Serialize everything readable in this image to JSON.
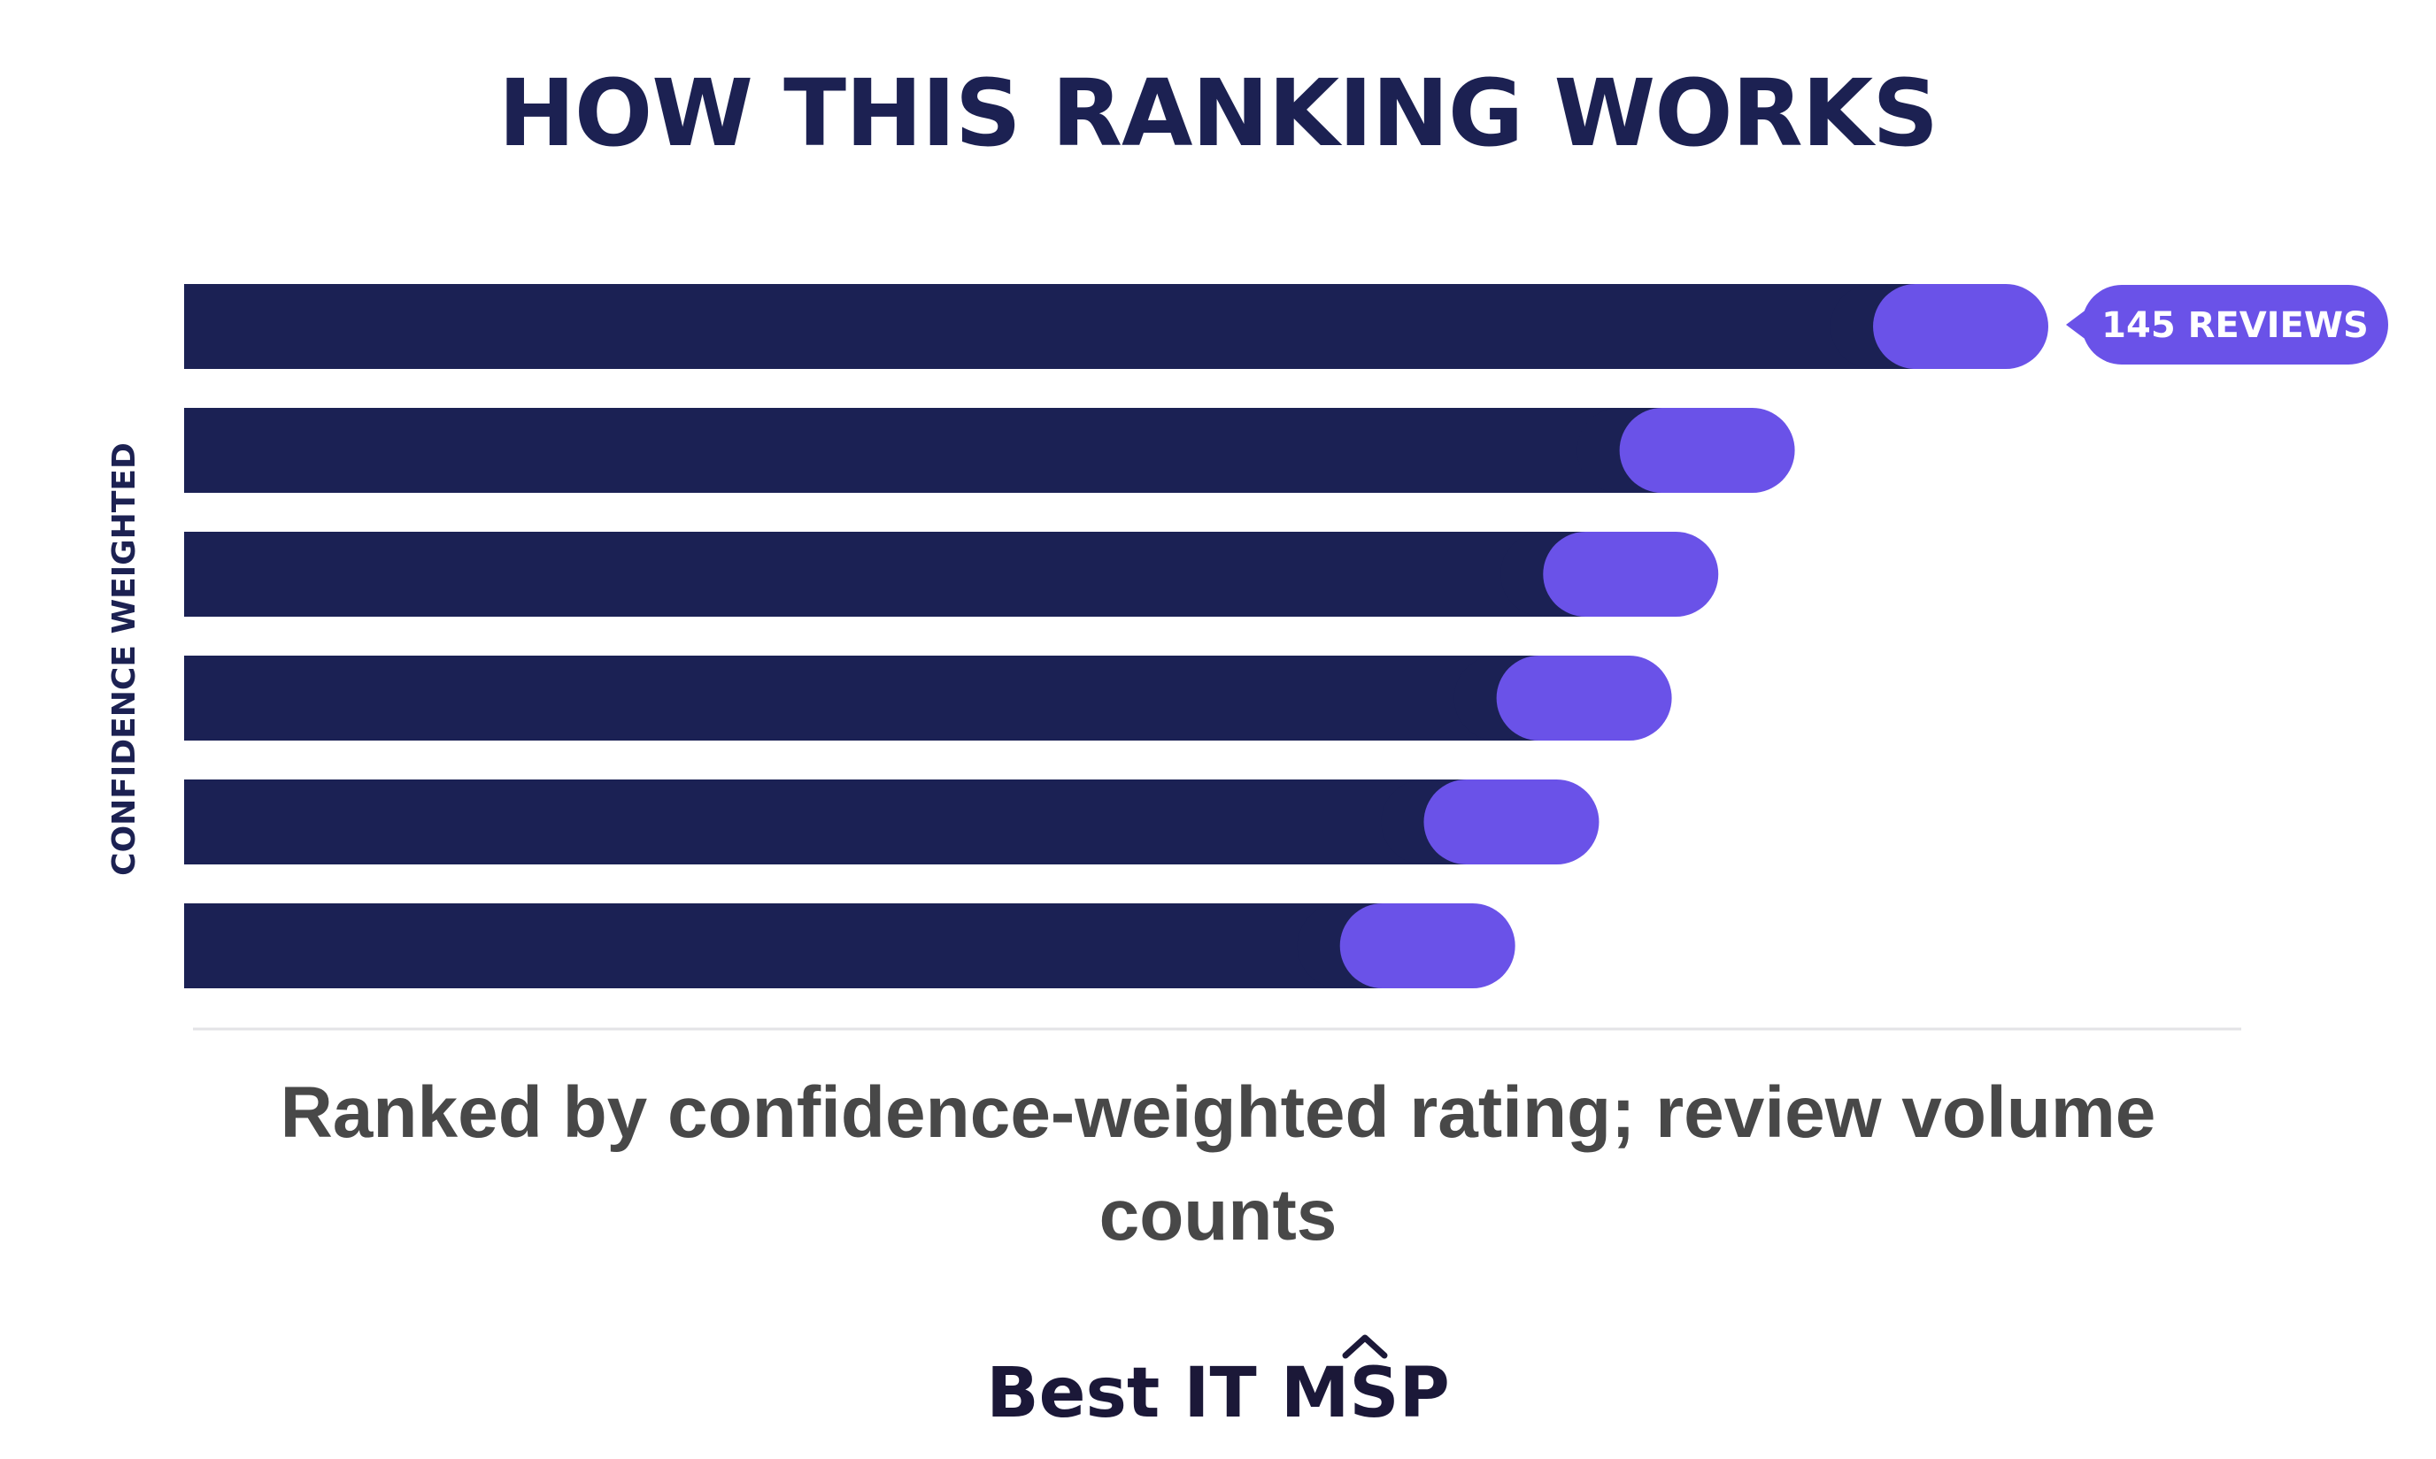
{
  "header": {
    "title": "HOW THIS RANKING WORKS"
  },
  "footer": {
    "subtitle": "Ranked by confidence-weighted rating; review volume counts",
    "brand_prefix": "Best IT ",
    "brand_mark": "MSP"
  },
  "colors": {
    "bar_main": "#1b2154",
    "bar_tip": "#6a52e8",
    "title": "#1c2152",
    "subtitle": "#484848",
    "brand": "#1b1838",
    "axis_line": "#e3e3e6"
  },
  "chart_data": {
    "type": "bar",
    "orientation": "horizontal",
    "ylabel": "CONFIDENCE WEIGHTED",
    "xlabel": "",
    "grid": false,
    "legend": "none",
    "categories": [
      "",
      "",
      "",
      "",
      "",
      ""
    ],
    "values": [
      100,
      86.4,
      82.3,
      79.8,
      75.9,
      71.4
    ],
    "tip_values": [
      9.4,
      9.4,
      9.4,
      9.4,
      9.4,
      9.4
    ],
    "xlim": [
      0,
      100
    ],
    "annotations": [
      {
        "bar_index": 0,
        "text": "145 REVIEWS"
      }
    ]
  }
}
